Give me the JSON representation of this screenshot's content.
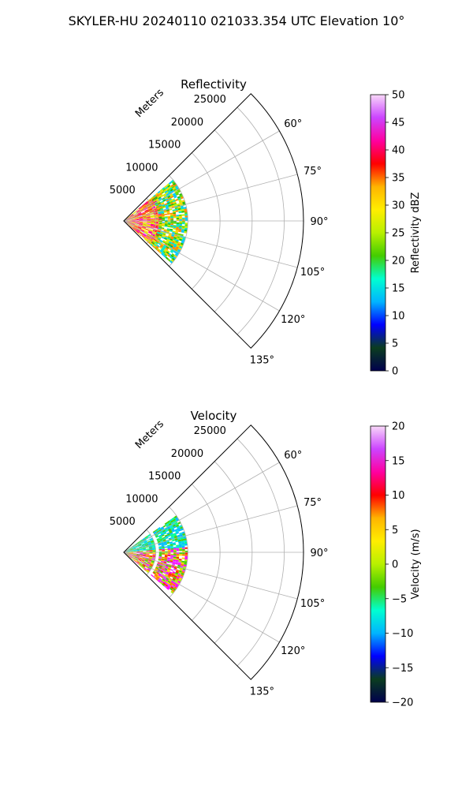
{
  "figure": {
    "suptitle": "SKYLER-HU  20240110  021033.354 UTC Elevation 10°"
  },
  "chart_data": [
    {
      "type": "polar-ppi",
      "title": "Reflectivity",
      "range_label": "Meters",
      "range_ticks": [
        5000,
        10000,
        15000,
        20000,
        25000
      ],
      "range_tick_labels": [
        "5000",
        "10000",
        "15000",
        "20000",
        "25000"
      ],
      "range_max": 28000,
      "azimuth_limits_deg": [
        45,
        135
      ],
      "azimuth_ticks": [
        60,
        75,
        90,
        105,
        120,
        135
      ],
      "azimuth_tick_labels": [
        "60°",
        "75°",
        "90°",
        "105°",
        "120°",
        "135°"
      ],
      "grid": true,
      "data_extent": {
        "azimuth_deg": [
          50,
          130
        ],
        "range_m_inner_segment": [
          0,
          6000
        ],
        "range_m_outer_segment": [
          5500,
          10000
        ],
        "gap_range_m": [
          4500,
          6000
        ]
      },
      "colorbar": {
        "label": "Reflectivity dBZ",
        "min": 0,
        "max": 50,
        "ticks": [
          0,
          5,
          10,
          15,
          20,
          25,
          30,
          35,
          40,
          45,
          50
        ],
        "tick_labels": [
          "0",
          "5",
          "10",
          "15",
          "20",
          "25",
          "30",
          "35",
          "40",
          "45",
          "50"
        ],
        "colormap": [
          "#00004d",
          "#0b3d1f",
          "#0000ff",
          "#00b4ff",
          "#00ffd0",
          "#44cc00",
          "#b8f000",
          "#ffee00",
          "#ffb400",
          "#ff0000",
          "#ff00a0",
          "#cc44ff",
          "#f8d8f8"
        ]
      }
    },
    {
      "type": "polar-ppi",
      "title": "Velocity",
      "range_label": "Meters",
      "range_ticks": [
        5000,
        10000,
        15000,
        20000,
        25000
      ],
      "range_tick_labels": [
        "5000",
        "10000",
        "15000",
        "20000",
        "25000"
      ],
      "range_max": 28000,
      "azimuth_limits_deg": [
        45,
        135
      ],
      "azimuth_ticks": [
        60,
        75,
        90,
        105,
        120,
        135
      ],
      "azimuth_tick_labels": [
        "60°",
        "75°",
        "90°",
        "105°",
        "120°",
        "135°"
      ],
      "grid": true,
      "data_extent": {
        "azimuth_deg": [
          55,
          130
        ],
        "range_m_inner_segment": [
          0,
          5000
        ],
        "range_m_outer_segment": [
          5500,
          10000
        ],
        "gap_range_m": [
          4500,
          6000
        ]
      },
      "colorbar": {
        "label": "Velocity (m/s)",
        "min": -20,
        "max": 20,
        "ticks": [
          -20,
          -15,
          -10,
          -5,
          0,
          5,
          10,
          15,
          20
        ],
        "tick_labels": [
          "−20",
          "−15",
          "−10",
          "−5",
          "0",
          "5",
          "10",
          "15",
          "20"
        ],
        "colormap": [
          "#00004d",
          "#0b3d1f",
          "#0000ff",
          "#00b4ff",
          "#00ffd0",
          "#44cc00",
          "#b8f000",
          "#ffee00",
          "#ffb400",
          "#ff0000",
          "#ff00a0",
          "#cc44ff",
          "#f8d8f8"
        ]
      }
    }
  ]
}
